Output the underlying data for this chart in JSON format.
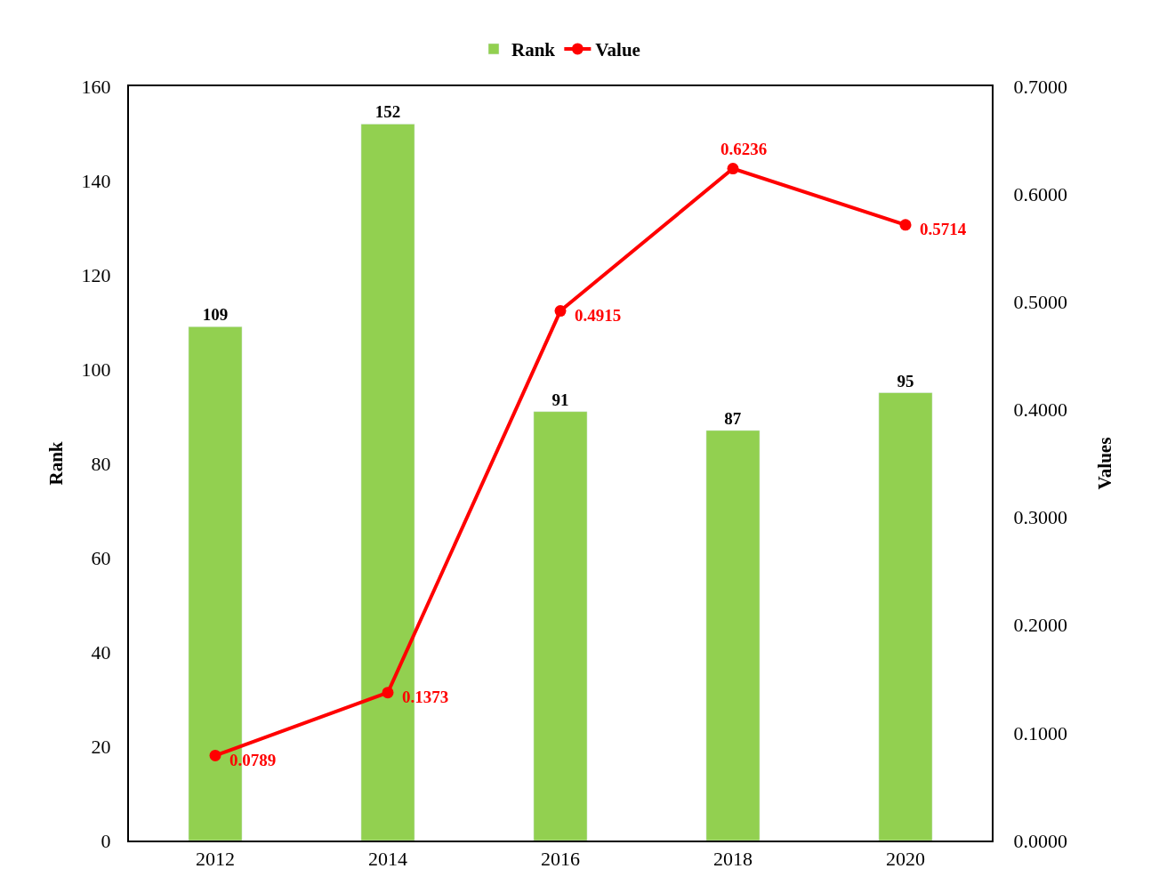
{
  "chart_data": {
    "type": "bar",
    "categories": [
      "2012",
      "2014",
      "2016",
      "2018",
      "2020"
    ],
    "series": [
      {
        "name": "Rank",
        "color": "#92d050",
        "values": [
          109,
          152,
          91,
          87,
          95
        ]
      },
      {
        "name": "Value",
        "type": "line",
        "axis": "y2",
        "color": "#ff0000",
        "marker": "circle",
        "line_style": "solid",
        "values": [
          0.0789,
          0.1373,
          0.4915,
          0.6236,
          0.5714
        ]
      }
    ],
    "ylabel": "Rank",
    "y2label": "Values",
    "ylim": [
      0,
      160
    ],
    "yticks": [
      0,
      20,
      40,
      60,
      80,
      100,
      120,
      140,
      160
    ],
    "y2lim": [
      0,
      0.7
    ],
    "y2ticks": [
      {
        "value": 0,
        "label": "0.0000"
      },
      {
        "value": 0.1,
        "label": "0.1000"
      },
      {
        "value": 0.2,
        "label": "0.2000"
      },
      {
        "value": 0.3,
        "label": "0.3000"
      },
      {
        "value": 0.4,
        "label": "0.4000"
      },
      {
        "value": 0.5,
        "label": "0.5000"
      },
      {
        "value": 0.6,
        "label": "0.6000"
      },
      {
        "value": 0.7,
        "label": "0.7000"
      }
    ],
    "data_labels": true,
    "legend": "top"
  }
}
